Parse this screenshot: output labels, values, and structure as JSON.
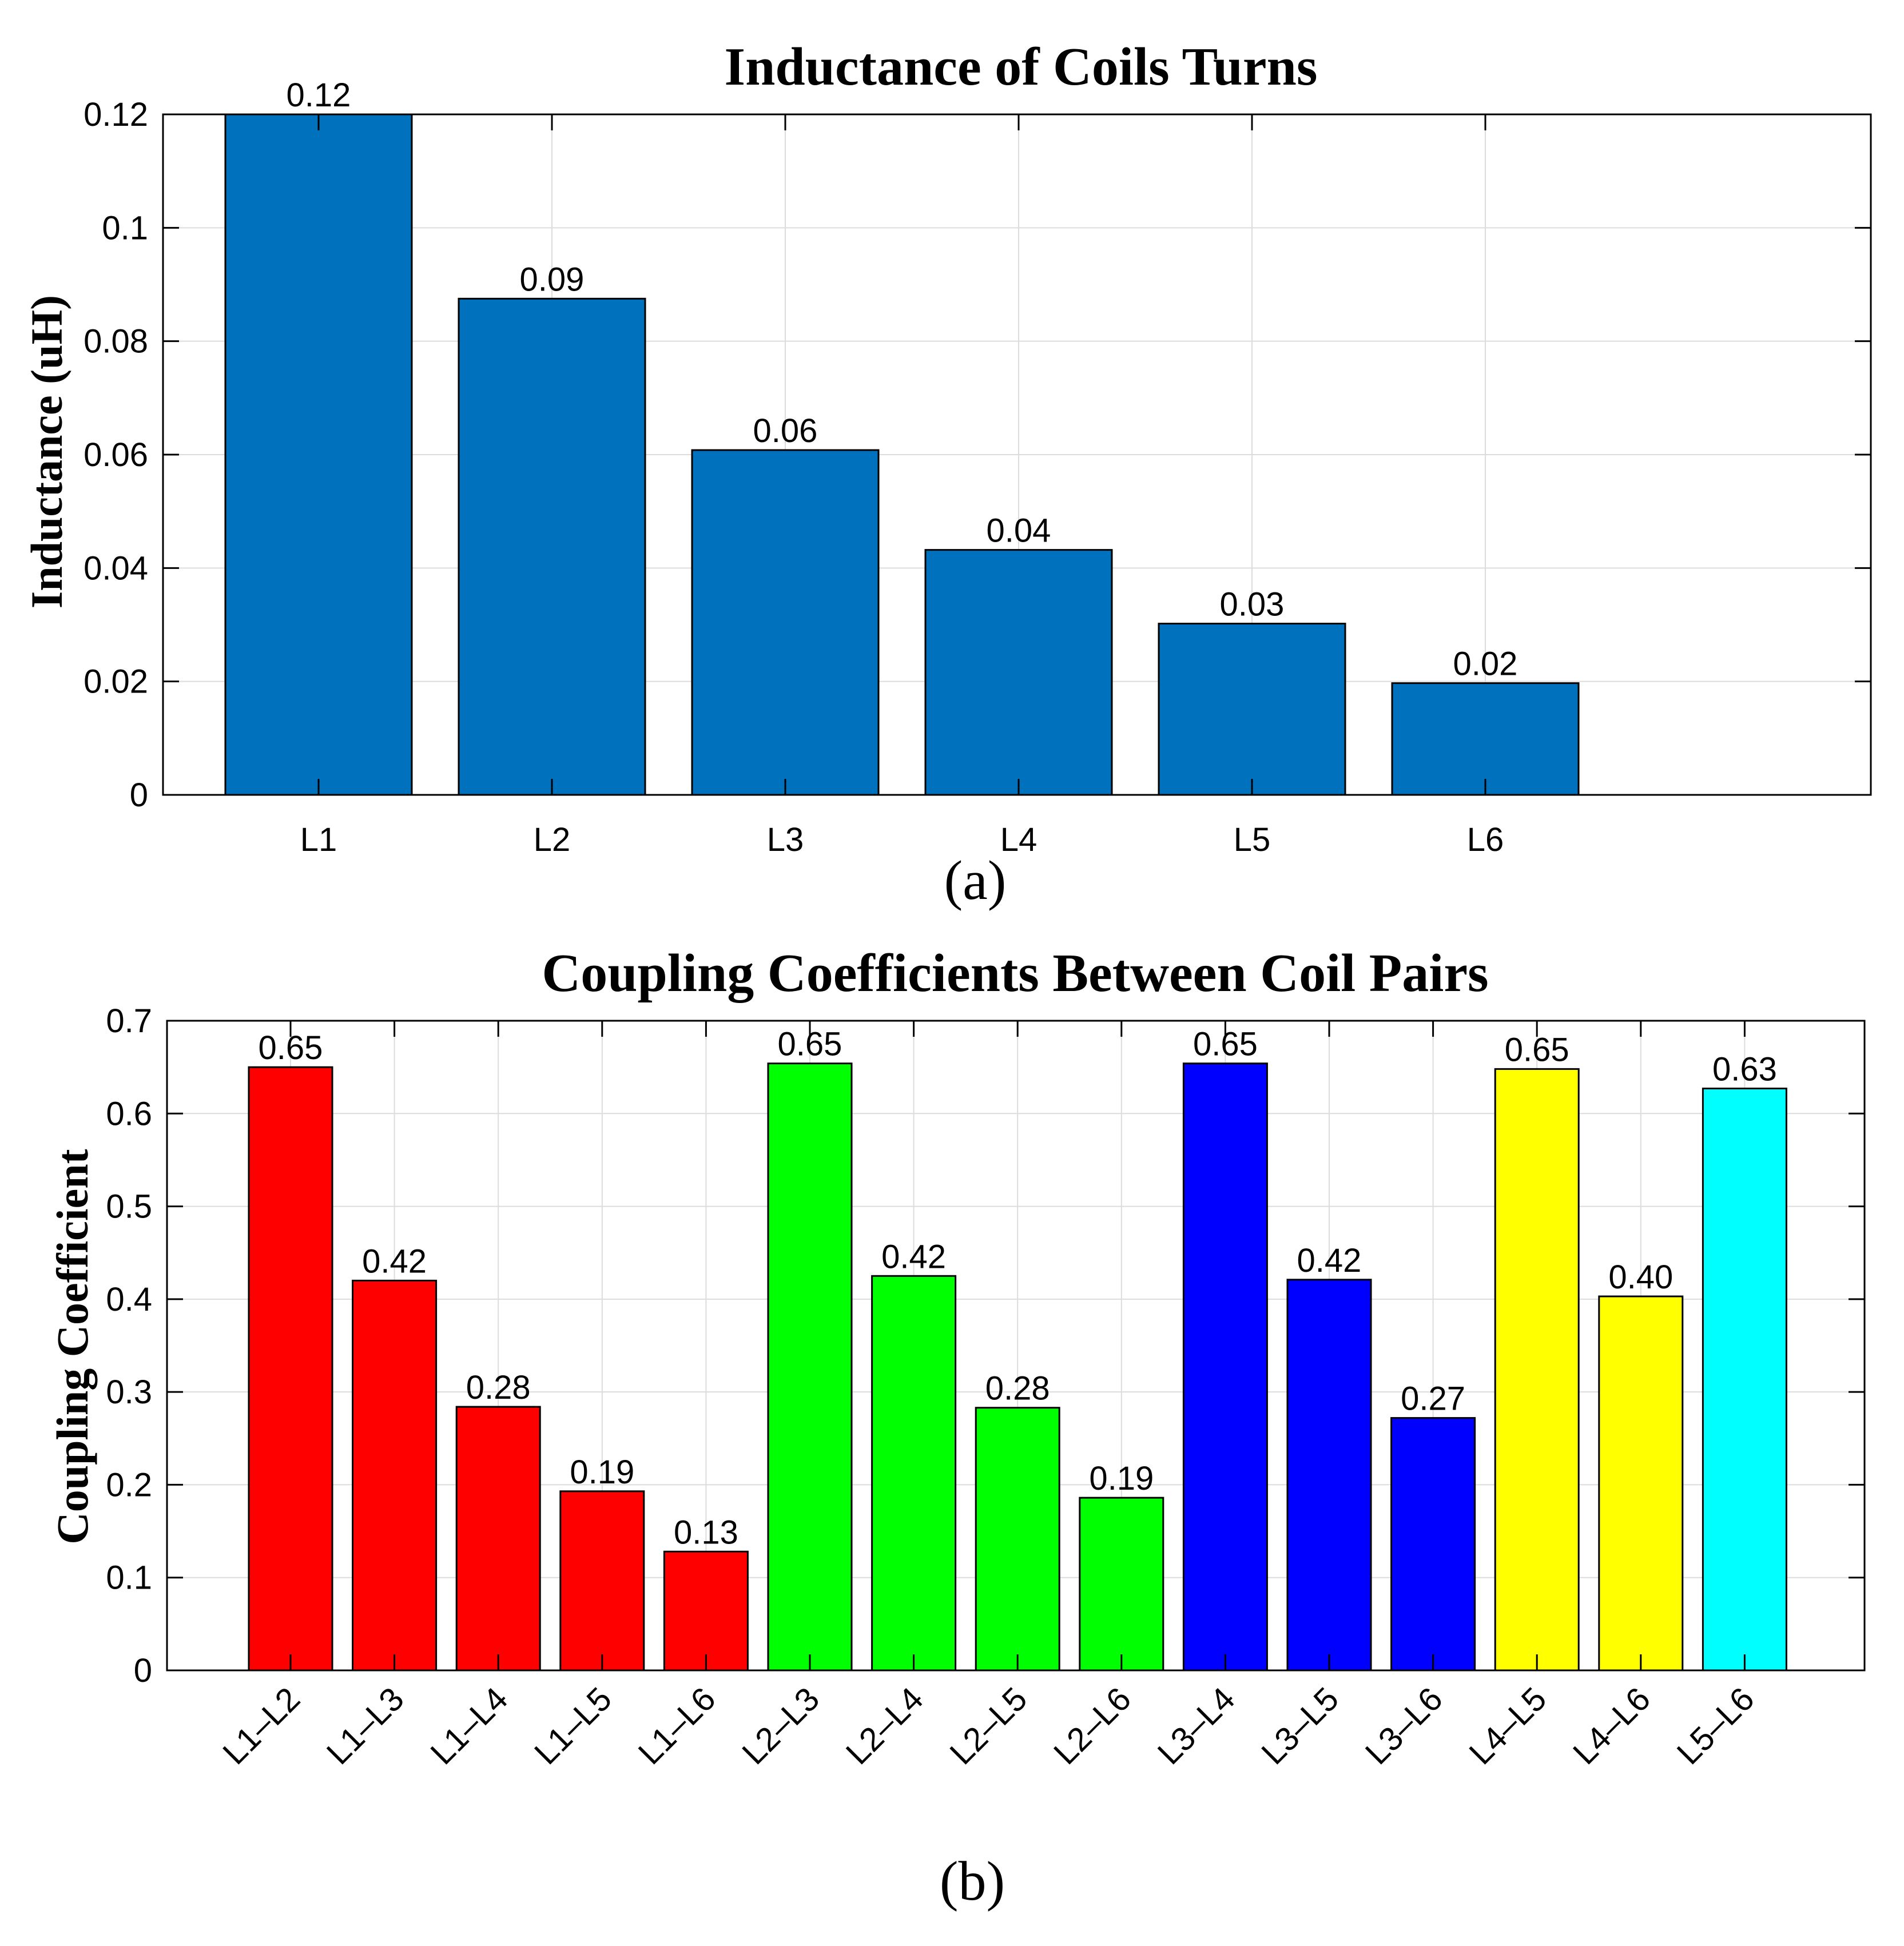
{
  "chart_data": [
    {
      "type": "bar",
      "title": "Inductance of Coils Turns",
      "xlabel": "",
      "ylabel": "Inductance (uH)",
      "panel_label": "(a)",
      "categories": [
        "L1",
        "L2",
        "L3",
        "L4",
        "L5",
        "L6"
      ],
      "values": [
        0.12,
        0.0875,
        0.0608,
        0.0432,
        0.0302,
        0.0197
      ],
      "data_labels": [
        "0.12",
        "0.09",
        "0.06",
        "0.04",
        "0.03",
        "0.02"
      ],
      "ylim": [
        0,
        0.12
      ],
      "yticks": [
        "0",
        "0.02",
        "0.04",
        "0.06",
        "0.08",
        "0.1",
        "0.12"
      ],
      "grid": true,
      "colors": [
        "#0072bd",
        "#0072bd",
        "#0072bd",
        "#0072bd",
        "#0072bd",
        "#0072bd"
      ]
    },
    {
      "type": "bar",
      "title": "Coupling Coefficients Between Coil Pairs",
      "xlabel": "",
      "ylabel": "Coupling Coefficient",
      "panel_label": "(b)",
      "categories": [
        "L1–L2",
        "L1–L3",
        "L1–L4",
        "L1–L5",
        "L1–L6",
        "L2–L3",
        "L2–L4",
        "L2–L5",
        "L2–L6",
        "L3–L4",
        "L3–L5",
        "L3–L6",
        "L4–L5",
        "L4–L6",
        "L5–L6"
      ],
      "values": [
        0.65,
        0.42,
        0.284,
        0.193,
        0.128,
        0.654,
        0.425,
        0.283,
        0.186,
        0.654,
        0.421,
        0.272,
        0.648,
        0.403,
        0.627
      ],
      "data_labels": [
        "0.65",
        "0.42",
        "0.28",
        "0.19",
        "0.13",
        "0.65",
        "0.42",
        "0.28",
        "0.19",
        "0.65",
        "0.42",
        "0.27",
        "0.65",
        "0.40",
        "0.63"
      ],
      "ylim": [
        0,
        0.7
      ],
      "yticks": [
        "0",
        "0.1",
        "0.2",
        "0.3",
        "0.4",
        "0.5",
        "0.6",
        "0.7"
      ],
      "grid": true,
      "colors": [
        "#ff0000",
        "#ff0000",
        "#ff0000",
        "#ff0000",
        "#ff0000",
        "#00ff00",
        "#00ff00",
        "#00ff00",
        "#00ff00",
        "#0000ff",
        "#0000ff",
        "#0000ff",
        "#ffff00",
        "#ffff00",
        "#00ffff"
      ]
    }
  ]
}
